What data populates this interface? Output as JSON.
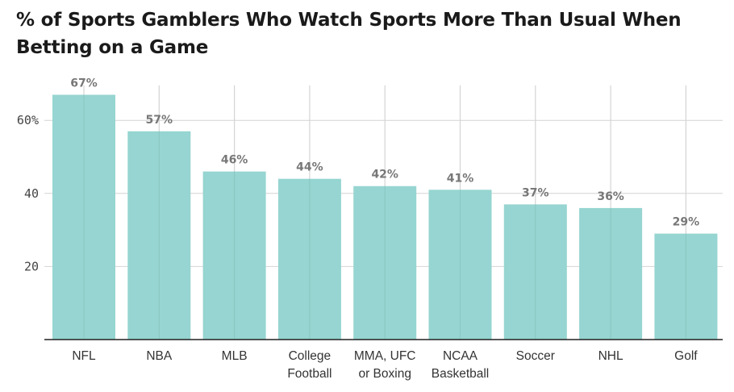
{
  "chart_data": {
    "type": "bar",
    "title": "% of Sports Gamblers Who Watch Sports More Than Usual When Betting on a Game",
    "xlabel": "",
    "ylabel": "",
    "categories": [
      [
        "NFL"
      ],
      [
        "NBA"
      ],
      [
        "MLB"
      ],
      [
        "College",
        "Football"
      ],
      [
        "MMA, UFC",
        "or Boxing"
      ],
      [
        "NCAA",
        "Basketball"
      ],
      [
        "Soccer"
      ],
      [
        "NHL"
      ],
      [
        "Golf"
      ]
    ],
    "values": [
      67,
      57,
      46,
      44,
      42,
      41,
      37,
      36,
      29
    ],
    "data_labels": [
      "67%",
      "57%",
      "46%",
      "44%",
      "42%",
      "41%",
      "37%",
      "36%",
      "29%"
    ],
    "yticks": [
      {
        "value": 20,
        "label": "20"
      },
      {
        "value": 40,
        "label": "40"
      },
      {
        "value": 60,
        "label": "60%"
      }
    ],
    "ylim": [
      0,
      70
    ],
    "grid": true,
    "bar_color": "#96d5d1",
    "grid_color": "#d4d4d4",
    "axis_color": "#222222"
  }
}
